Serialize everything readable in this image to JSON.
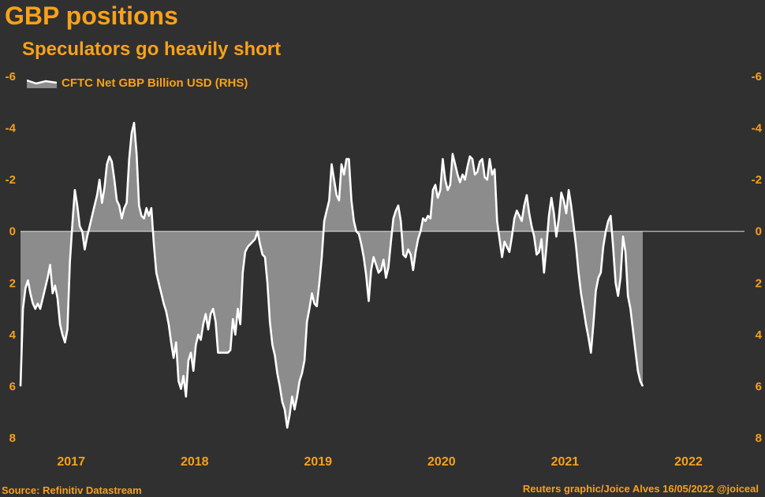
{
  "title": "GBP positions",
  "subtitle": "Speculators go heavily short",
  "source": "Source: Refinitiv Datastream",
  "credit": "Reuters graphic/Joice Alves 16/05/2022 @joiceal",
  "colors": {
    "background": "#303030",
    "accent": "#f7a11a",
    "line": "#ffffff",
    "fill": "#8c8c8c",
    "zero_line": "#e0e0e0"
  },
  "chart_data": {
    "type": "area",
    "title": "GBP positions",
    "subtitle": "Speculators go heavily short",
    "legend": {
      "position": "top-left",
      "entries": [
        "CFTC Net GBP Billion USD (RHS)"
      ]
    },
    "y_axis": {
      "inverted": true,
      "range": [
        -6,
        8
      ],
      "ticks": [
        -6,
        -4,
        -2,
        0,
        2,
        4,
        6,
        8
      ],
      "tick_labels": [
        "-6",
        "-4",
        "-2",
        "0",
        "2",
        "4",
        "6",
        "8"
      ],
      "sides": [
        "left",
        "right"
      ]
    },
    "x_axis": {
      "range": [
        2016.6,
        2022.4
      ],
      "ticks": [
        2017,
        2018,
        2019,
        2020,
        2021,
        2022
      ],
      "tick_labels": [
        "2017",
        "2018",
        "2019",
        "2020",
        "2021",
        "2022"
      ]
    },
    "grid": false,
    "series": [
      {
        "name": "CFTC Net GBP Billion USD (RHS)",
        "points": [
          [
            2016.6,
            6.0
          ],
          [
            2016.62,
            3.0
          ],
          [
            2016.64,
            2.2
          ],
          [
            2016.66,
            1.9
          ],
          [
            2016.68,
            2.4
          ],
          [
            2016.7,
            2.8
          ],
          [
            2016.72,
            3.0
          ],
          [
            2016.74,
            2.8
          ],
          [
            2016.76,
            3.0
          ],
          [
            2016.79,
            2.4
          ],
          [
            2016.82,
            1.8
          ],
          [
            2016.84,
            1.3
          ],
          [
            2016.86,
            2.4
          ],
          [
            2016.88,
            2.1
          ],
          [
            2016.9,
            2.6
          ],
          [
            2016.92,
            3.6
          ],
          [
            2016.94,
            4.0
          ],
          [
            2016.96,
            4.3
          ],
          [
            2016.98,
            3.8
          ],
          [
            2017.0,
            1.2
          ],
          [
            2017.02,
            -0.3
          ],
          [
            2017.04,
            -1.6
          ],
          [
            2017.06,
            -1.0
          ],
          [
            2017.08,
            -0.2
          ],
          [
            2017.1,
            0.0
          ],
          [
            2017.12,
            0.7
          ],
          [
            2017.14,
            0.2
          ],
          [
            2017.16,
            -0.2
          ],
          [
            2017.18,
            -0.6
          ],
          [
            2017.2,
            -1.0
          ],
          [
            2017.22,
            -1.4
          ],
          [
            2017.24,
            -2.0
          ],
          [
            2017.26,
            -1.1
          ],
          [
            2017.28,
            -1.7
          ],
          [
            2017.3,
            -2.6
          ],
          [
            2017.32,
            -2.9
          ],
          [
            2017.34,
            -2.7
          ],
          [
            2017.36,
            -2.0
          ],
          [
            2017.38,
            -1.2
          ],
          [
            2017.4,
            -1.0
          ],
          [
            2017.42,
            -0.5
          ],
          [
            2017.44,
            -0.9
          ],
          [
            2017.46,
            -1.1
          ],
          [
            2017.48,
            -2.8
          ],
          [
            2017.5,
            -3.8
          ],
          [
            2017.52,
            -4.2
          ],
          [
            2017.54,
            -3.0
          ],
          [
            2017.56,
            -1.0
          ],
          [
            2017.58,
            -0.6
          ],
          [
            2017.6,
            -0.5
          ],
          [
            2017.62,
            -0.9
          ],
          [
            2017.64,
            -0.6
          ],
          [
            2017.66,
            -0.9
          ],
          [
            2017.68,
            0.5
          ],
          [
            2017.7,
            1.6
          ],
          [
            2017.72,
            2.0
          ],
          [
            2017.74,
            2.4
          ],
          [
            2017.76,
            2.8
          ],
          [
            2017.78,
            3.1
          ],
          [
            2017.8,
            3.6
          ],
          [
            2017.82,
            4.3
          ],
          [
            2017.84,
            4.9
          ],
          [
            2017.86,
            4.3
          ],
          [
            2017.88,
            5.8
          ],
          [
            2017.9,
            6.1
          ],
          [
            2017.92,
            5.6
          ],
          [
            2017.94,
            6.4
          ],
          [
            2017.96,
            5.0
          ],
          [
            2017.98,
            4.7
          ],
          [
            2018.0,
            5.4
          ],
          [
            2018.02,
            4.4
          ],
          [
            2018.04,
            4.0
          ],
          [
            2018.06,
            4.2
          ],
          [
            2018.08,
            3.6
          ],
          [
            2018.1,
            3.2
          ],
          [
            2018.12,
            3.8
          ],
          [
            2018.14,
            3.2
          ],
          [
            2018.16,
            3.0
          ],
          [
            2018.18,
            3.5
          ],
          [
            2018.2,
            4.7
          ],
          [
            2018.24,
            4.7
          ],
          [
            2018.28,
            4.7
          ],
          [
            2018.3,
            4.6
          ],
          [
            2018.32,
            3.4
          ],
          [
            2018.34,
            4.0
          ],
          [
            2018.36,
            3.0
          ],
          [
            2018.38,
            3.6
          ],
          [
            2018.4,
            1.6
          ],
          [
            2018.42,
            0.8
          ],
          [
            2018.44,
            0.6
          ],
          [
            2018.46,
            0.5
          ],
          [
            2018.48,
            0.4
          ],
          [
            2018.5,
            0.3
          ],
          [
            2018.52,
            0.0
          ],
          [
            2018.54,
            0.5
          ],
          [
            2018.56,
            0.9
          ],
          [
            2018.58,
            1.0
          ],
          [
            2018.6,
            2.0
          ],
          [
            2018.62,
            3.5
          ],
          [
            2018.64,
            4.4
          ],
          [
            2018.66,
            4.8
          ],
          [
            2018.68,
            5.5
          ],
          [
            2018.7,
            6.0
          ],
          [
            2018.72,
            6.6
          ],
          [
            2018.74,
            6.9
          ],
          [
            2018.76,
            7.6
          ],
          [
            2018.78,
            7.1
          ],
          [
            2018.8,
            6.4
          ],
          [
            2018.82,
            6.9
          ],
          [
            2018.84,
            6.4
          ],
          [
            2018.86,
            5.8
          ],
          [
            2018.88,
            5.5
          ],
          [
            2018.9,
            5.0
          ],
          [
            2018.92,
            3.5
          ],
          [
            2018.94,
            3.0
          ],
          [
            2018.96,
            2.4
          ],
          [
            2018.98,
            2.8
          ],
          [
            2019.0,
            2.9
          ],
          [
            2019.02,
            2.0
          ],
          [
            2019.04,
            1.0
          ],
          [
            2019.06,
            -0.4
          ],
          [
            2019.08,
            -0.8
          ],
          [
            2019.1,
            -1.2
          ],
          [
            2019.12,
            -2.6
          ],
          [
            2019.14,
            -2.0
          ],
          [
            2019.16,
            -1.4
          ],
          [
            2019.18,
            -1.2
          ],
          [
            2019.2,
            -2.6
          ],
          [
            2019.22,
            -2.2
          ],
          [
            2019.24,
            -2.8
          ],
          [
            2019.26,
            -2.8
          ],
          [
            2019.28,
            -1.2
          ],
          [
            2019.3,
            -0.4
          ],
          [
            2019.32,
            0.0
          ],
          [
            2019.34,
            0.1
          ],
          [
            2019.36,
            0.5
          ],
          [
            2019.38,
            1.0
          ],
          [
            2019.4,
            1.7
          ],
          [
            2019.42,
            2.7
          ],
          [
            2019.44,
            1.5
          ],
          [
            2019.46,
            1.0
          ],
          [
            2019.48,
            1.3
          ],
          [
            2019.5,
            1.6
          ],
          [
            2019.52,
            1.5
          ],
          [
            2019.54,
            1.1
          ],
          [
            2019.56,
            1.8
          ],
          [
            2019.58,
            1.4
          ],
          [
            2019.6,
            0.4
          ],
          [
            2019.62,
            -0.5
          ],
          [
            2019.64,
            -0.8
          ],
          [
            2019.66,
            -1.0
          ],
          [
            2019.68,
            -0.4
          ],
          [
            2019.7,
            0.9
          ],
          [
            2019.72,
            1.0
          ],
          [
            2019.74,
            0.7
          ],
          [
            2019.76,
            0.9
          ],
          [
            2019.78,
            1.5
          ],
          [
            2019.8,
            0.8
          ],
          [
            2019.82,
            0.3
          ],
          [
            2019.84,
            0.0
          ],
          [
            2019.86,
            -0.5
          ],
          [
            2019.88,
            -0.4
          ],
          [
            2019.9,
            -0.6
          ],
          [
            2019.92,
            -0.5
          ],
          [
            2019.94,
            -1.6
          ],
          [
            2019.96,
            -1.8
          ],
          [
            2019.98,
            -1.3
          ],
          [
            2020.0,
            -1.6
          ],
          [
            2020.02,
            -2.8
          ],
          [
            2020.04,
            -2.0
          ],
          [
            2020.06,
            -1.6
          ],
          [
            2020.08,
            -1.8
          ],
          [
            2020.1,
            -3.0
          ],
          [
            2020.12,
            -2.6
          ],
          [
            2020.14,
            -2.2
          ],
          [
            2020.16,
            -1.9
          ],
          [
            2020.18,
            -2.2
          ],
          [
            2020.2,
            -2.0
          ],
          [
            2020.22,
            -2.5
          ],
          [
            2020.24,
            -2.9
          ],
          [
            2020.26,
            -2.8
          ],
          [
            2020.28,
            -2.2
          ],
          [
            2020.3,
            -2.3
          ],
          [
            2020.32,
            -2.7
          ],
          [
            2020.34,
            -2.8
          ],
          [
            2020.36,
            -2.1
          ],
          [
            2020.38,
            -2.0
          ],
          [
            2020.4,
            -2.8
          ],
          [
            2020.42,
            -2.2
          ],
          [
            2020.44,
            -2.4
          ],
          [
            2020.46,
            -0.4
          ],
          [
            2020.48,
            0.3
          ],
          [
            2020.5,
            1.0
          ],
          [
            2020.52,
            0.4
          ],
          [
            2020.54,
            0.6
          ],
          [
            2020.56,
            0.8
          ],
          [
            2020.58,
            0.2
          ],
          [
            2020.6,
            -0.5
          ],
          [
            2020.62,
            -0.8
          ],
          [
            2020.64,
            -0.6
          ],
          [
            2020.66,
            -0.4
          ],
          [
            2020.68,
            -1.0
          ],
          [
            2020.7,
            -1.4
          ],
          [
            2020.72,
            -0.7
          ],
          [
            2020.74,
            -0.2
          ],
          [
            2020.76,
            0.2
          ],
          [
            2020.78,
            0.9
          ],
          [
            2020.8,
            0.8
          ],
          [
            2020.82,
            0.3
          ],
          [
            2020.84,
            1.6
          ],
          [
            2020.86,
            0.6
          ],
          [
            2020.88,
            -0.6
          ],
          [
            2020.9,
            -1.3
          ],
          [
            2020.92,
            -0.7
          ],
          [
            2020.94,
            0.2
          ],
          [
            2020.96,
            -0.5
          ],
          [
            2020.98,
            -1.5
          ],
          [
            2021.0,
            -1.2
          ],
          [
            2021.02,
            -0.7
          ],
          [
            2021.04,
            -1.6
          ],
          [
            2021.06,
            -1.0
          ],
          [
            2021.08,
            -0.2
          ],
          [
            2021.1,
            0.6
          ],
          [
            2021.12,
            1.6
          ],
          [
            2021.14,
            2.4
          ],
          [
            2021.16,
            3.0
          ],
          [
            2021.18,
            3.6
          ],
          [
            2021.2,
            4.1
          ],
          [
            2021.22,
            4.7
          ],
          [
            2021.24,
            3.6
          ],
          [
            2021.26,
            2.3
          ],
          [
            2021.28,
            1.8
          ],
          [
            2021.3,
            1.6
          ],
          [
            2021.32,
            0.6
          ],
          [
            2021.34,
            0.0
          ],
          [
            2021.36,
            -0.4
          ],
          [
            2021.38,
            -0.6
          ],
          [
            2021.4,
            0.6
          ],
          [
            2021.42,
            2.0
          ],
          [
            2021.44,
            2.5
          ],
          [
            2021.46,
            1.8
          ],
          [
            2021.48,
            0.2
          ],
          [
            2021.5,
            0.8
          ],
          [
            2021.52,
            2.5
          ],
          [
            2021.54,
            3.0
          ],
          [
            2021.56,
            3.8
          ],
          [
            2021.58,
            4.6
          ],
          [
            2021.6,
            5.4
          ],
          [
            2021.62,
            5.8
          ],
          [
            2021.64,
            6.0
          ]
        ]
      }
    ]
  }
}
